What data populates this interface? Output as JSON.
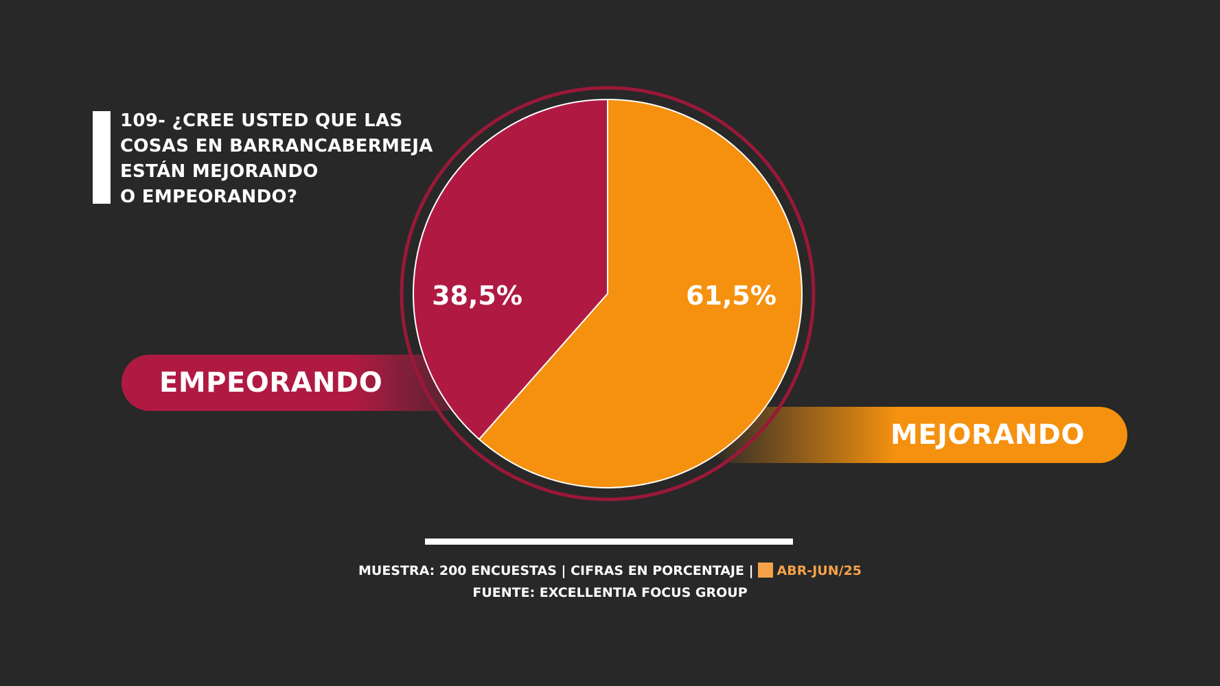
{
  "question": {
    "lines": [
      "109- ¿CREE USTED QUE LAS",
      "COSAS EN BARRANCABERMEJA",
      "ESTÁN MEJORANDO",
      "O EMPEORANDO?"
    ]
  },
  "chart_data": {
    "type": "pie",
    "slices": [
      {
        "label": "EMPEORANDO",
        "value": 38.5,
        "value_label": "38,5%",
        "color": "#b01a42"
      },
      {
        "label": "MEJORANDO",
        "value": 61.5,
        "value_label": "61,5%",
        "color": "#f5910f"
      }
    ],
    "ring_color": "#9a1838"
  },
  "footer": {
    "line1_main": "MUESTRA: 200 ENCUESTAS | CIFRAS EN PORCENTAJE |",
    "period": "ABR-JUN/25",
    "line2": "FUENTE: EXCELLENTIA FOCUS GROUP"
  },
  "colors": {
    "background": "#282828",
    "worsening": "#b01a42",
    "improving": "#f5910f",
    "period_accent": "#f5a24a"
  }
}
